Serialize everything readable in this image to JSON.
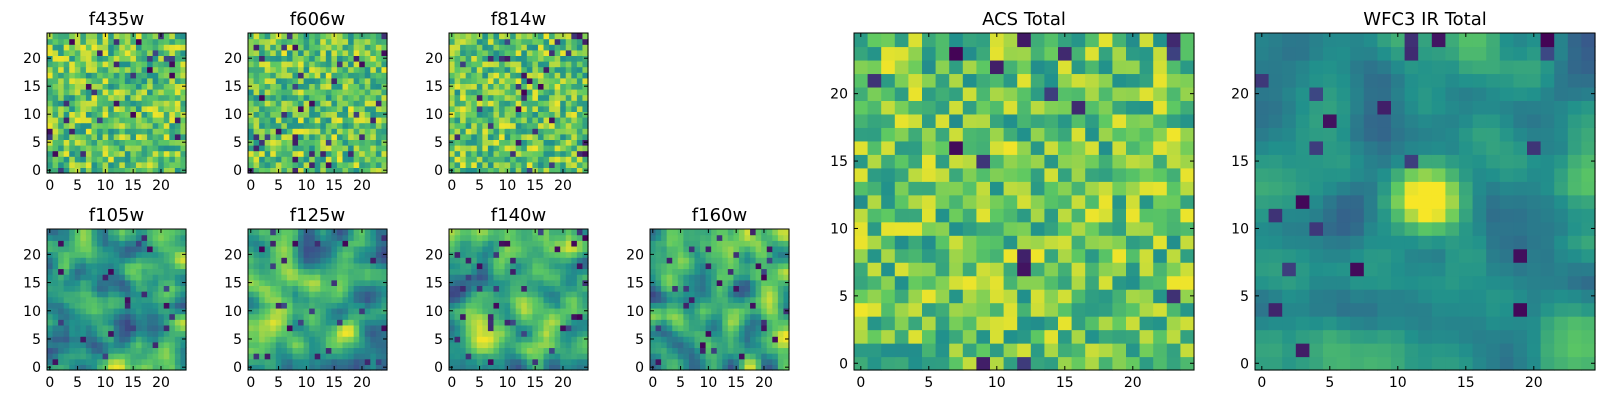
{
  "chart_data": {
    "type": "heatmap",
    "colormap": [
      "#440154",
      "#3b528b",
      "#21918c",
      "#5ec962",
      "#fde725"
    ],
    "panels": [
      {
        "key": "f435w",
        "title": "f435w",
        "grid_size": 25,
        "texture": "fine",
        "seed": 11,
        "dark_fraction": 0.05,
        "x_ticks": [
          0,
          5,
          10,
          15,
          20
        ],
        "y_ticks": [
          0,
          5,
          10,
          15,
          20
        ],
        "xlim": [
          0,
          25
        ],
        "ylim": [
          0,
          25
        ]
      },
      {
        "key": "f606w",
        "title": "f606w",
        "grid_size": 25,
        "texture": "fine",
        "seed": 23,
        "dark_fraction": 0.05,
        "x_ticks": [
          0,
          5,
          10,
          15,
          20
        ],
        "y_ticks": [
          0,
          5,
          10,
          15,
          20
        ],
        "xlim": [
          0,
          25
        ],
        "ylim": [
          0,
          25
        ]
      },
      {
        "key": "f814w",
        "title": "f814w",
        "grid_size": 25,
        "texture": "fine",
        "seed": 37,
        "dark_fraction": 0.05,
        "x_ticks": [
          0,
          5,
          10,
          15,
          20
        ],
        "y_ticks": [
          0,
          5,
          10,
          15,
          20
        ],
        "xlim": [
          0,
          25
        ],
        "ylim": [
          0,
          25
        ]
      },
      {
        "key": "f105w",
        "title": "f105w",
        "grid_size": 25,
        "texture": "smooth",
        "seed": 41,
        "dark_fraction": 0.04,
        "x_ticks": [
          0,
          5,
          10,
          15,
          20
        ],
        "y_ticks": [
          0,
          5,
          10,
          15,
          20
        ],
        "xlim": [
          0,
          25
        ],
        "ylim": [
          0,
          25
        ]
      },
      {
        "key": "f125w",
        "title": "f125w",
        "grid_size": 25,
        "texture": "smooth",
        "seed": 53,
        "dark_fraction": 0.05,
        "x_ticks": [
          0,
          5,
          10,
          15,
          20
        ],
        "y_ticks": [
          0,
          5,
          10,
          15,
          20
        ],
        "xlim": [
          0,
          25
        ],
        "ylim": [
          0,
          25
        ]
      },
      {
        "key": "f140w",
        "title": "f140w",
        "grid_size": 25,
        "texture": "smooth",
        "seed": 67,
        "dark_fraction": 0.04,
        "x_ticks": [
          0,
          5,
          10,
          15,
          20
        ],
        "y_ticks": [
          0,
          5,
          10,
          15,
          20
        ],
        "xlim": [
          0,
          25
        ],
        "ylim": [
          0,
          25
        ]
      },
      {
        "key": "f160w",
        "title": "f160w",
        "grid_size": 25,
        "texture": "smooth",
        "seed": 79,
        "dark_fraction": 0.06,
        "x_ticks": [
          0,
          5,
          10,
          15,
          20
        ],
        "y_ticks": [
          0,
          5,
          10,
          15,
          20
        ],
        "xlim": [
          0,
          25
        ],
        "ylim": [
          0,
          25
        ]
      },
      {
        "key": "acs_total",
        "title": "ACS Total",
        "grid_size": 25,
        "texture": "fine",
        "seed": 97,
        "dark_fraction": 0.03,
        "x_ticks": [
          0,
          5,
          10,
          15,
          20
        ],
        "y_ticks": [
          0,
          5,
          10,
          15,
          20
        ],
        "xlim": [
          0,
          25
        ],
        "ylim": [
          0,
          25
        ]
      },
      {
        "key": "wfc3_ir_total",
        "title": "WFC3 IR Total",
        "grid_size": 25,
        "texture": "source",
        "seed": 103,
        "dark_fraction": 0.04,
        "source_center": [
          12,
          12
        ],
        "x_ticks": [
          0,
          5,
          10,
          15,
          20
        ],
        "y_ticks": [
          0,
          5,
          10,
          15,
          20
        ],
        "xlim": [
          0,
          25
        ],
        "ylim": [
          0,
          25
        ]
      }
    ]
  }
}
